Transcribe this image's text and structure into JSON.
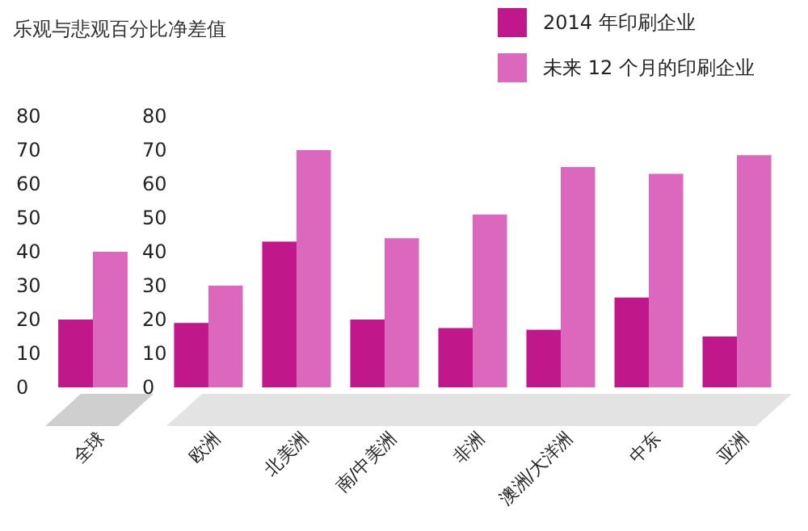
{
  "chart_data": [
    {
      "type": "bar",
      "title": "乐观与悲观百分比净差值",
      "categories": [
        "全球"
      ],
      "series": [
        {
          "color": "#c0178a",
          "values": [
            20
          ]
        },
        {
          "color": "#dc68bd",
          "values": [
            40
          ]
        }
      ],
      "ylim": [
        0,
        80
      ],
      "yticks": [
        0,
        10,
        20,
        30,
        40,
        50,
        60,
        70,
        80
      ],
      "grid": false,
      "legend": false
    },
    {
      "type": "bar",
      "categories": [
        "欧洲",
        "北美洲",
        "南/中美洲",
        "非洲",
        "澳洲/大洋洲",
        "中东",
        "亚洲"
      ],
      "series": [
        {
          "name": "2014 年印刷企业",
          "color": "#c0178a",
          "values": [
            19,
            43,
            20,
            17.5,
            17,
            26.5,
            15
          ]
        },
        {
          "name": "未来 12 个月的印刷企业",
          "color": "#dc68bd",
          "values": [
            30,
            70,
            44,
            51,
            65,
            63,
            68.5
          ]
        }
      ],
      "ylim": [
        0,
        80
      ],
      "yticks": [
        0,
        10,
        20,
        30,
        40,
        50,
        60,
        70,
        80
      ],
      "grid": false,
      "legend": "top right"
    }
  ]
}
